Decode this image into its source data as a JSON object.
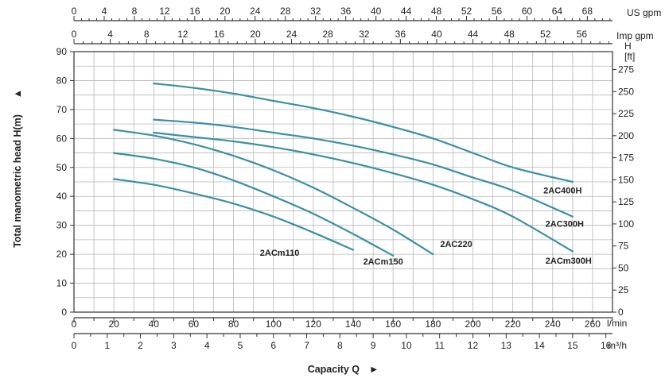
{
  "chart_data": {
    "type": "line",
    "xlabel": "Capacity Q",
    "ylabel": "Total manometric head H(m)",
    "xlim": [
      0,
      270
    ],
    "ylim": [
      0,
      90
    ],
    "grid": true,
    "axes": {
      "bottom_lmin": {
        "unit": "l/min",
        "ticks": [
          0,
          20,
          40,
          60,
          80,
          100,
          120,
          140,
          160,
          180,
          200,
          220,
          240,
          260
        ]
      },
      "bottom_m3h": {
        "unit": "m³/h",
        "ticks": [
          0,
          1,
          2,
          3,
          4,
          5,
          6,
          7,
          8,
          9,
          10,
          11,
          12,
          13,
          14,
          15,
          16
        ]
      },
      "top_usgpm": {
        "unit": "US gpm",
        "ticks": [
          0,
          4,
          8,
          12,
          16,
          20,
          24,
          28,
          32,
          36,
          40,
          44,
          48,
          52,
          56,
          60,
          64,
          68
        ]
      },
      "top_impgpm": {
        "unit": "Imp gpm",
        "ticks": [
          0,
          4,
          8,
          12,
          16,
          20,
          24,
          28,
          32,
          36,
          40,
          44,
          48,
          52,
          56
        ]
      },
      "left_m": {
        "ticks": [
          0,
          10,
          20,
          30,
          40,
          50,
          60,
          70,
          80,
          90
        ]
      },
      "right_ft": {
        "unit_top": "H",
        "unit": "[ft]",
        "ticks": [
          0,
          25,
          50,
          75,
          100,
          125,
          150,
          175,
          200,
          225,
          250,
          275
        ]
      }
    },
    "series": [
      {
        "name": "2ACm110",
        "x": [
          20,
          40,
          60,
          80,
          100,
          120,
          140
        ],
        "y": [
          46,
          44,
          41,
          37.5,
          33,
          27.5,
          21.5
        ]
      },
      {
        "name": "2ACm150",
        "x": [
          20,
          40,
          60,
          80,
          100,
          120,
          140,
          160
        ],
        "y": [
          55,
          53,
          50,
          45.5,
          40,
          34,
          27,
          19.5
        ]
      },
      {
        "name": "2AC220",
        "x": [
          20,
          40,
          60,
          80,
          100,
          120,
          140,
          160,
          180
        ],
        "y": [
          63,
          61,
          58,
          54,
          49,
          43,
          36,
          28.5,
          20
        ]
      },
      {
        "name": "2ACm300H",
        "x": [
          40,
          60,
          80,
          100,
          120,
          140,
          160,
          180,
          200,
          220,
          250
        ],
        "y": [
          62,
          60.5,
          59,
          57,
          54.5,
          51.5,
          48,
          44,
          39,
          33,
          21
        ]
      },
      {
        "name": "2AC300H",
        "x": [
          40,
          60,
          80,
          100,
          120,
          140,
          160,
          180,
          200,
          220,
          250
        ],
        "y": [
          66.5,
          65.5,
          64,
          62,
          60,
          57.5,
          54.5,
          51,
          46.5,
          42,
          33
        ]
      },
      {
        "name": "2AC400H",
        "x": [
          40,
          60,
          80,
          100,
          120,
          140,
          160,
          180,
          200,
          220,
          250
        ],
        "y": [
          79,
          77.5,
          75.5,
          73,
          70.5,
          67.5,
          64,
          60,
          55,
          50,
          45
        ]
      }
    ],
    "colors": {
      "series": "#3a8fa6",
      "grid": "#b7b7b7",
      "axis": "#333333",
      "text": "#222222"
    }
  }
}
